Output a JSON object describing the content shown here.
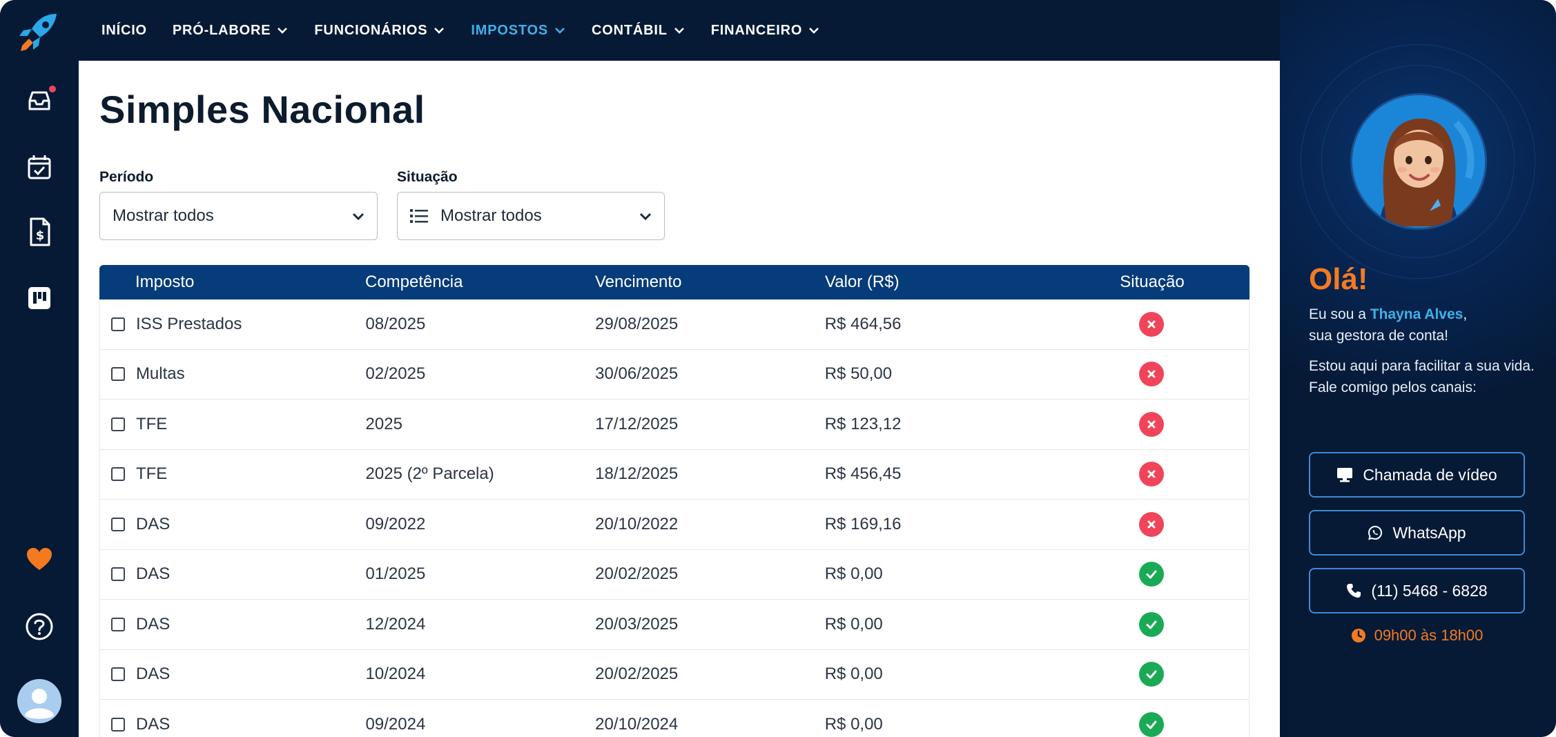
{
  "nav": {
    "items": [
      {
        "label": "INÍCIO",
        "dropdown": false,
        "active": false
      },
      {
        "label": "PRÓ-LABORE",
        "dropdown": true,
        "active": false
      },
      {
        "label": "FUNCIONÁRIOS",
        "dropdown": true,
        "active": false
      },
      {
        "label": "IMPOSTOS",
        "dropdown": true,
        "active": true
      },
      {
        "label": "CONTÁBIL",
        "dropdown": true,
        "active": false
      },
      {
        "label": "FINANCEIRO",
        "dropdown": true,
        "active": false
      }
    ]
  },
  "sidebar": {
    "icons": [
      "rocket-logo-icon",
      "inbox-icon",
      "calendar-check-icon",
      "invoice-icon",
      "board-icon",
      "heart-icon",
      "help-icon",
      "user-avatar-icon"
    ],
    "notification": true
  },
  "page": {
    "title": "Simples Nacional"
  },
  "filters": {
    "periodo": {
      "label": "Período",
      "value": "Mostrar todos"
    },
    "situacao": {
      "label": "Situação",
      "value": "Mostrar todos"
    }
  },
  "table": {
    "headers": [
      "Imposto",
      "Competência",
      "Vencimento",
      "Valor (R$)",
      "Situação"
    ],
    "rows": [
      {
        "imposto": "ISS Prestados",
        "competencia": "08/2025",
        "vencimento": "29/08/2025",
        "valor": "R$ 464,56",
        "status": "pendente"
      },
      {
        "imposto": "Multas",
        "competencia": "02/2025",
        "vencimento": "30/06/2025",
        "valor": "R$ 50,00",
        "status": "pendente"
      },
      {
        "imposto": "TFE",
        "competencia": "2025",
        "vencimento": "17/12/2025",
        "valor": "R$ 123,12",
        "status": "pendente"
      },
      {
        "imposto": "TFE",
        "competencia": "2025 (2º Parcela)",
        "vencimento": "18/12/2025",
        "valor": "R$ 456,45",
        "status": "pendente"
      },
      {
        "imposto": "DAS",
        "competencia": "09/2022",
        "vencimento": "20/10/2022",
        "valor": "R$ 169,16",
        "status": "pendente"
      },
      {
        "imposto": "DAS",
        "competencia": "01/2025",
        "vencimento": "20/02/2025",
        "valor": "R$ 0,00",
        "status": "pago"
      },
      {
        "imposto": "DAS",
        "competencia": "12/2024",
        "vencimento": "20/03/2025",
        "valor": "R$ 0,00",
        "status": "pago"
      },
      {
        "imposto": "DAS",
        "competencia": "10/2024",
        "vencimento": "20/02/2025",
        "valor": "R$ 0,00",
        "status": "pago"
      },
      {
        "imposto": "DAS",
        "competencia": "09/2024",
        "vencimento": "20/10/2024",
        "valor": "R$ 0,00",
        "status": "pago"
      }
    ]
  },
  "assistant": {
    "greeting": "Olá!",
    "intro_prefix": "Eu sou a ",
    "name": "Thayna Alves",
    "intro_suffix": ",",
    "role": "sua gestora de conta!",
    "message": "Estou aqui para facilitar a sua vida. Fale comigo pelos canais:",
    "buttons": {
      "video": "Chamada de vídeo",
      "whatsapp": "WhatsApp",
      "phone": "(11) 5468 - 6828"
    },
    "hours": "09h00 às 18h00"
  },
  "colors": {
    "dark_bg": "#061a36",
    "header_blue": "#073c7a",
    "accent_blue": "#3fb1e8",
    "orange": "#f47a22",
    "status_red": "#f0445a",
    "status_green": "#1aaa55"
  }
}
